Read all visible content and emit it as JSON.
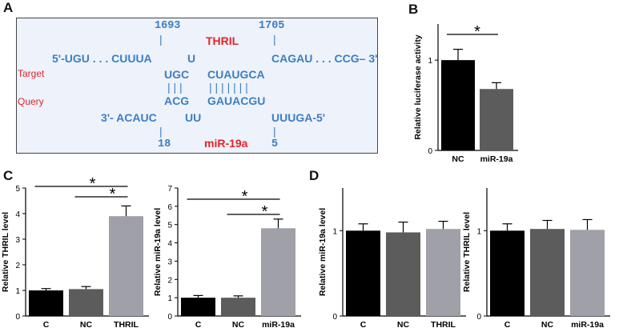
{
  "panel_labels": {
    "a": "A",
    "b": "B",
    "c": "C",
    "d": "D"
  },
  "panel_a": {
    "pos_left": "1693",
    "pos_right": "1705",
    "thril_label": "THRIL",
    "target_5p": "5'-UGU . . . CUUUA",
    "target_bulge": "U",
    "target_3p": "CAGAU . . . CCG– 3'",
    "target_pair_left": "UGC",
    "target_pair_right": "CUAUGCA",
    "bonds_left": "| | |",
    "bonds_right": "| | | | | | |",
    "query_pair_left": "ACG",
    "query_pair_right": "GAUACGU",
    "query_3p": "3'- ACAUC",
    "query_bulge": "UU",
    "query_5p": "UUUGA-5'",
    "pos_bottom_left": "18",
    "pos_bottom_right": "5",
    "mir_label": "miR-19a",
    "side_target": "Target",
    "side_query": "Query"
  },
  "colors": {
    "black": "#000000",
    "dark_grey": "#5c5c5c",
    "light_grey": "#a0a0a8",
    "seq_blue": "#3b7fc2",
    "label_red": "#e0252b"
  },
  "chart_data": [
    {
      "id": "B",
      "type": "bar",
      "categories": [
        "NC",
        "miR-19a"
      ],
      "values": [
        1.0,
        0.68
      ],
      "errors": [
        0.12,
        0.07
      ],
      "ylabel": "Relative luciferase activity",
      "ylim": [
        0,
        1.4
      ],
      "yticks": [
        0,
        1
      ],
      "significance": [
        {
          "from": 0,
          "to": 1,
          "label": "*"
        }
      ]
    },
    {
      "id": "C-left",
      "type": "bar",
      "categories": [
        "C",
        "NC",
        "THRIL"
      ],
      "values": [
        1.0,
        1.05,
        3.9
      ],
      "errors": [
        0.07,
        0.1,
        0.4
      ],
      "ylabel": "Relative THRIL level",
      "ylim": [
        0,
        5
      ],
      "yticks": [
        0,
        1,
        2,
        3,
        4,
        5
      ],
      "significance": [
        {
          "from": 0,
          "to": 2,
          "label": "*"
        },
        {
          "from": 1,
          "to": 2,
          "label": "*"
        }
      ]
    },
    {
      "id": "C-right",
      "type": "bar",
      "categories": [
        "C",
        "NC",
        "miR-19a"
      ],
      "values": [
        1.0,
        1.0,
        4.8
      ],
      "errors": [
        0.12,
        0.1,
        0.5
      ],
      "ylabel": "Relative miR-19a level",
      "ylim": [
        0,
        7
      ],
      "yticks": [
        0,
        1,
        2,
        3,
        4,
        5,
        6,
        7
      ],
      "significance": [
        {
          "from": 0,
          "to": 2,
          "label": "*"
        },
        {
          "from": 1,
          "to": 2,
          "label": "*"
        }
      ]
    },
    {
      "id": "D-left",
      "type": "bar",
      "categories": [
        "C",
        "NC",
        "THRIL"
      ],
      "values": [
        1.0,
        0.98,
        1.02
      ],
      "errors": [
        0.08,
        0.12,
        0.09
      ],
      "ylabel": "Relative miR-19a level",
      "ylim": [
        0,
        1.5
      ],
      "yticks": [
        0,
        1
      ],
      "significance": []
    },
    {
      "id": "D-right",
      "type": "bar",
      "categories": [
        "C",
        "NC",
        "miR-19a"
      ],
      "values": [
        1.0,
        1.02,
        1.01
      ],
      "errors": [
        0.08,
        0.1,
        0.12
      ],
      "ylabel": "Relative THRIL level",
      "ylim": [
        0,
        1.5
      ],
      "yticks": [
        0,
        1
      ],
      "significance": []
    }
  ]
}
